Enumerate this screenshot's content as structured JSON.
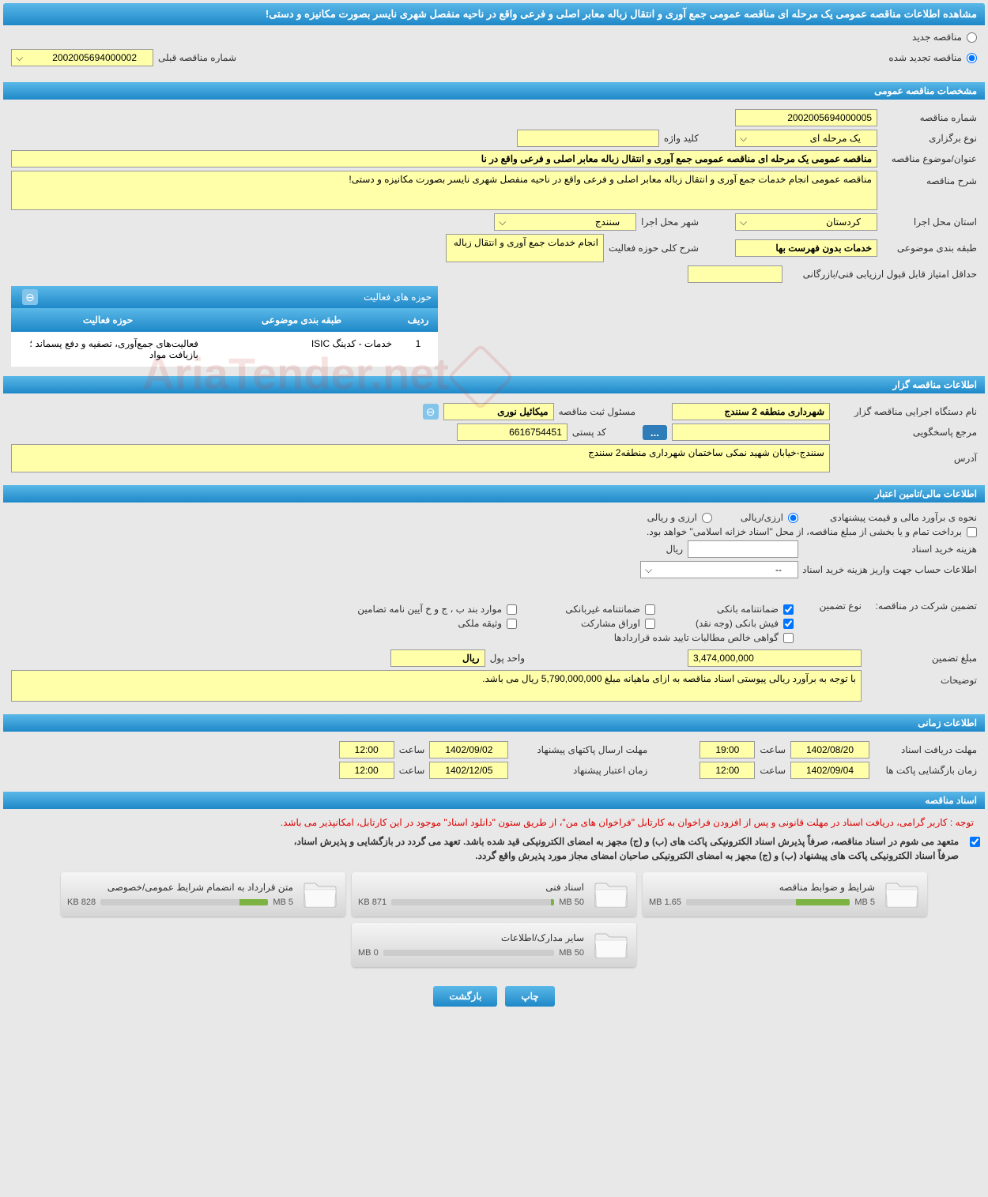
{
  "title": "مشاهده اطلاعات مناقصه عمومی یک مرحله ای مناقصه عمومی جمع آوری و انتقال زباله معابر اصلی و فرعی واقع در ناحیه منفصل شهری نایسر بصورت مکانیزه و دستی!",
  "radio_new": "مناقصه جدید",
  "radio_renewed": "مناقصه تجدید شده",
  "prev_tender_label": "شماره مناقصه قبلی",
  "prev_tender_number": "2002005694000002",
  "sections": {
    "general": "مشخصات مناقصه عمومی",
    "tenderer": "اطلاعات مناقصه گزار",
    "financial": "اطلاعات مالی/تامین اعتبار",
    "timing": "اطلاعات زمانی",
    "documents": "اسناد مناقصه"
  },
  "general": {
    "tender_number_label": "شماره مناقصه",
    "tender_number": "2002005694000005",
    "type_label": "نوع برگزاری",
    "type_value": "یک مرحله ای",
    "keyword_label": "کلید واژه",
    "keyword_value": "",
    "subject_label": "عنوان/موضوع مناقصه",
    "subject_value": "مناقصه عمومی یک مرحله ای مناقصه عمومی جمع آوری و انتقال زباله معابر اصلی و فرعی واقع در نا",
    "description_label": "شرح مناقصه",
    "description_value": "مناقصه عمومی انجام خدمات جمع آوری و انتقال زباله معابر اصلی و فرعی واقع در ناحیه منفصل شهری نایسر بصورت مکانیزه و دستی!",
    "province_label": "استان محل اجرا",
    "province_value": "کردستان",
    "city_label": "شهر محل اجرا",
    "city_value": "سنندج",
    "classification_label": "طبقه بندی موضوعی",
    "classification_value": "خدمات بدون فهرست بها",
    "activity_desc_label": "شرح کلی حوزه فعالیت",
    "activity_desc_value": "انجام خدمات جمع آوری و انتقال زباله",
    "min_score_label": "حداقل امتیاز قابل قبول ارزیابی فنی/بازرگانی",
    "min_score_value": "",
    "activities_header": "حوزه های فعالیت",
    "table_col_row": "ردیف",
    "table_col_class": "طبقه بندی موضوعی",
    "table_col_activity": "حوزه فعالیت",
    "table_row_num": "1",
    "table_row_class": "خدمات - کدینگ ISIC",
    "table_row_activity": "فعالیت‌های جمع‌آوری، تصفیه و دفع پسماند ؛ بازیافت مواد"
  },
  "tenderer": {
    "org_label": "نام دستگاه اجرایی مناقصه گزار",
    "org_value": "شهرداری منطقه 2 سنندج",
    "reg_official_label": "مسئول ثبت مناقصه",
    "reg_official_value": "میکائیل نوری",
    "contact_label": "مرجع پاسخگویی",
    "contact_value": "",
    "postal_label": "کد پستی",
    "postal_value": "6616754451",
    "address_label": "آدرس",
    "address_value": "سنندج-خیابان شهید نمکی ساختمان شهرداری منطقه2 سنندج"
  },
  "financial": {
    "estimate_label": "نحوه ی برآورد مالی و قیمت پیشنهادی",
    "option_rial": "ارزی/ریالی",
    "option_currency": "ارزی و ریالی",
    "payment_note": "برداخت تمام و یا بخشی از مبلغ مناقصه، از محل \"اسناد خزانه اسلامی\" خواهد بود.",
    "purchase_cost_label": "هزینه خرید اسناد",
    "purchase_cost_unit": "ریال",
    "account_info_label": "اطلاعات حساب جهت واریز هزینه خرید اسناد",
    "account_info_value": "--",
    "guarantee_label": "تضمین شرکت در مناقصه:",
    "guarantee_type_label": "نوع تضمین",
    "chk_bank_guarantee": "ضمانتنامه بانکی",
    "chk_nonbank_guarantee": "ضمانتنامه غیربانکی",
    "chk_regulation": "موارد بند ب ، ج و خ آیین نامه تضامین",
    "chk_cash": "فیش بانکی (وجه نقد)",
    "chk_securities": "اوراق مشارکت",
    "chk_property": "وثیقه ملکی",
    "chk_verified_claims": "گواهی خالص مطالبات تایید شده قراردادها",
    "guarantee_amount_label": "مبلغ تضمین",
    "guarantee_amount_value": "3,474,000,000",
    "currency_unit_label": "واحد پول",
    "currency_unit_value": "ريال",
    "notes_label": "توضیحات",
    "notes_value": "با توجه به برآورد ریالی پیوستی اسناد مناقصه به ازای ماهیانه مبلغ 5,790,000,000 ریال می باشد."
  },
  "timing": {
    "receive_deadline_label": "مهلت دریافت اسناد",
    "receive_deadline_date": "1402/08/20",
    "receive_deadline_time_label": "ساعت",
    "receive_deadline_time": "19:00",
    "submit_deadline_label": "مهلت ارسال پاکتهای پیشنهاد",
    "submit_deadline_date": "1402/09/02",
    "submit_deadline_time_label": "ساعت",
    "submit_deadline_time": "12:00",
    "opening_label": "زمان بازگشایی پاکت ها",
    "opening_date": "1402/09/04",
    "opening_time_label": "ساعت",
    "opening_time": "12:00",
    "validity_label": "زمان اعتبار پیشنهاد",
    "validity_date": "1402/12/05",
    "validity_time_label": "ساعت",
    "validity_time": "12:00"
  },
  "documents": {
    "banner": "توجه : کاربر گرامی، دریافت اسناد در مهلت قانونی و پس از افزودن فراخوان به کارتابل \"فراخوان های من\"، از طریق ستون \"دانلود اسناد\" موجود در این کارتابل، امکانپذیر می باشد.",
    "commitment1": "متعهد می شوم در اسناد مناقصه، صرفاً پذیرش اسناد الکترونیکی پاکت های (ب) و (ج) مجهز به امضای الکترونیکی قید شده باشد. تعهد می گردد در بازگشایی و پذیرش اسناد،",
    "commitment2": "صرفاً اسناد الکترونیکی پاکت های پیشنهاد (ب) و (ج) مجهز به امضای الکترونیکی صاحبان امضای مجاز مورد پذیرش واقع گردد.",
    "cards": [
      {
        "title": "شرایط و ضوابط مناقصه",
        "size": "1.65 MB",
        "max": "5 MB",
        "pct": 33
      },
      {
        "title": "اسناد فنی",
        "size": "871 KB",
        "max": "50 MB",
        "pct": 2
      },
      {
        "title": "متن قرارداد به انضمام شرایط عمومی/خصوصی",
        "size": "828 KB",
        "max": "5 MB",
        "pct": 17
      },
      {
        "title": "سایر مدارک/اطلاعات",
        "size": "0 MB",
        "max": "50 MB",
        "pct": 0
      }
    ]
  },
  "buttons": {
    "print": "چاپ",
    "back": "بازگشت"
  },
  "watermark": "AriaTender.net",
  "colors": {
    "header_top": "#5ab8e8",
    "header_bottom": "#1e88c8",
    "yellow": "#ffffaa",
    "progress": "#7cb342"
  }
}
